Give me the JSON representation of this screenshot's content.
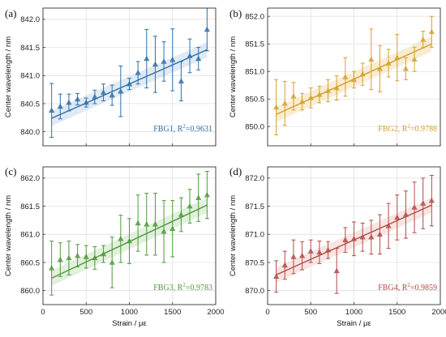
{
  "chart_data": [
    {
      "type": "scatter",
      "panel_label": "(a)",
      "legend": "FBG1, R",
      "legend_sup": "2",
      "legend_value": "=0.9631",
      "color": "#2f6fa8",
      "fill_color": "#c9dcef",
      "ylabel": "Center wavelength / nm",
      "xlabel": "",
      "xlim": [
        0,
        2000
      ],
      "ylim": [
        839.75,
        842.2
      ],
      "xticks": [
        0,
        500,
        1000,
        1500,
        2000
      ],
      "xtick_labels": [
        "",
        "",
        "",
        "",
        ""
      ],
      "yticks": [
        840.0,
        840.5,
        841.0,
        841.5,
        842.0
      ],
      "ytick_labels": [
        "840.0",
        "840.5",
        "841.0",
        "841.5",
        "842.0"
      ],
      "grid": true,
      "legend_position": "bottom-right",
      "x": [
        100,
        200,
        300,
        400,
        500,
        600,
        700,
        800,
        900,
        1000,
        1100,
        1200,
        1300,
        1400,
        1500,
        1600,
        1700,
        1800,
        1900
      ],
      "y": [
        840.38,
        840.45,
        840.52,
        840.58,
        840.52,
        840.62,
        840.7,
        840.65,
        840.72,
        840.85,
        841.05,
        841.3,
        841.2,
        841.25,
        841.28,
        840.9,
        841.35,
        841.3,
        841.82
      ],
      "yerr": [
        0.48,
        0.22,
        0.15,
        0.1,
        0.08,
        0.12,
        0.15,
        0.18,
        0.45,
        0.1,
        0.2,
        0.52,
        0.5,
        0.35,
        0.55,
        0.35,
        0.3,
        0.2,
        0.38
      ],
      "fit": {
        "x": [
          100,
          1900
        ],
        "y": [
          840.24,
          841.46
        ]
      }
    },
    {
      "type": "scatter",
      "panel_label": "(b)",
      "legend": "FBG2, R",
      "legend_sup": "2",
      "legend_value": "=0.9788",
      "color": "#d4a02c",
      "fill_color": "#f4e1b5",
      "ylabel": "Center wavelength / nm",
      "xlabel": "",
      "xlim": [
        0,
        2000
      ],
      "ylim": [
        849.65,
        852.15
      ],
      "xticks": [
        0,
        500,
        1000,
        1500,
        2000
      ],
      "xtick_labels": [
        "",
        "",
        "",
        "",
        ""
      ],
      "yticks": [
        850.0,
        850.5,
        851.0,
        851.5,
        852.0
      ],
      "ytick_labels": [
        "850.0",
        "850.5",
        "851.0",
        "851.5",
        "852.0"
      ],
      "grid": true,
      "legend_position": "bottom-right",
      "x": [
        100,
        200,
        300,
        400,
        500,
        600,
        700,
        800,
        900,
        1000,
        1100,
        1200,
        1300,
        1400,
        1500,
        1600,
        1700,
        1800,
        1900
      ],
      "y": [
        850.35,
        850.42,
        850.55,
        850.45,
        850.52,
        850.58,
        850.65,
        850.7,
        850.9,
        850.85,
        850.95,
        851.22,
        851.05,
        851.15,
        851.25,
        851.05,
        851.22,
        851.58,
        851.72
      ],
      "yerr": [
        0.5,
        0.4,
        0.25,
        0.15,
        0.18,
        0.15,
        0.2,
        0.22,
        0.35,
        0.15,
        0.2,
        0.55,
        0.42,
        0.25,
        0.42,
        0.2,
        0.22,
        0.15,
        0.28
      ],
      "fit": {
        "x": [
          100,
          1900
        ],
        "y": [
          850.22,
          851.5
        ]
      }
    },
    {
      "type": "scatter",
      "panel_label": "(c)",
      "legend": "FBG3, R",
      "legend_sup": "2",
      "legend_value": "=0.9783",
      "color": "#4c9a3a",
      "fill_color": "#cfe6c6",
      "ylabel": "Center wavelength / nm",
      "xlabel": "Strain / με",
      "xlim": [
        0,
        2000
      ],
      "ylim": [
        859.75,
        862.2
      ],
      "xticks": [
        0,
        500,
        1000,
        1500,
        2000
      ],
      "xtick_labels": [
        "0",
        "500",
        "1000",
        "1500",
        "2000"
      ],
      "yticks": [
        860.0,
        860.5,
        861.0,
        861.5,
        862.0
      ],
      "ytick_labels": [
        "860.0",
        "860.5",
        "861.0",
        "861.5",
        "862.0"
      ],
      "grid": true,
      "legend_position": "bottom-right",
      "x": [
        100,
        200,
        300,
        400,
        500,
        600,
        700,
        800,
        900,
        1000,
        1100,
        1200,
        1300,
        1400,
        1500,
        1600,
        1700,
        1800,
        1900
      ],
      "y": [
        860.4,
        860.55,
        860.58,
        860.62,
        860.6,
        860.58,
        860.65,
        860.5,
        860.92,
        860.88,
        861.2,
        861.18,
        861.18,
        861.05,
        861.1,
        861.35,
        861.5,
        861.65,
        861.7
      ],
      "yerr": [
        0.48,
        0.3,
        0.3,
        0.2,
        0.2,
        0.2,
        0.15,
        0.45,
        0.42,
        0.4,
        0.5,
        0.55,
        0.55,
        0.55,
        0.5,
        0.3,
        0.3,
        0.42,
        0.42
      ],
      "fit": {
        "x": [
          100,
          1900
        ],
        "y": [
          860.22,
          861.52
        ]
      }
    },
    {
      "type": "scatter",
      "panel_label": "(d)",
      "legend": "FBG4, R",
      "legend_sup": "2",
      "legend_value": "=0.9859",
      "color": "#b24a46",
      "fill_color": "#f3d3d1",
      "ylabel": "Center wavelength / nm",
      "xlabel": "Strain / με",
      "xlim": [
        0,
        2000
      ],
      "ylim": [
        869.75,
        872.2
      ],
      "xticks": [
        0,
        500,
        1000,
        1500,
        2000
      ],
      "xtick_labels": [
        "0",
        "500",
        "1000",
        "1500",
        "2000"
      ],
      "yticks": [
        870.0,
        870.5,
        871.0,
        871.5,
        872.0
      ],
      "ytick_labels": [
        "870.0",
        "870.5",
        "871.0",
        "871.5",
        "872.0"
      ],
      "grid": true,
      "legend_position": "bottom-right",
      "x": [
        100,
        200,
        300,
        400,
        500,
        600,
        700,
        800,
        900,
        1000,
        1100,
        1200,
        1300,
        1400,
        1500,
        1600,
        1700,
        1800,
        1900
      ],
      "y": [
        870.25,
        870.45,
        870.6,
        870.62,
        870.7,
        870.68,
        870.72,
        870.35,
        870.9,
        870.92,
        870.95,
        870.95,
        871.0,
        871.15,
        871.3,
        871.35,
        871.48,
        871.55,
        871.6
      ],
      "yerr": [
        0.28,
        0.25,
        0.3,
        0.25,
        0.2,
        0.2,
        0.15,
        0.4,
        0.22,
        0.3,
        0.25,
        0.3,
        0.35,
        0.4,
        0.4,
        0.42,
        0.45,
        0.45,
        0.45
      ],
      "fit": {
        "x": [
          100,
          1900
        ],
        "y": [
          870.28,
          871.52
        ]
      }
    }
  ]
}
